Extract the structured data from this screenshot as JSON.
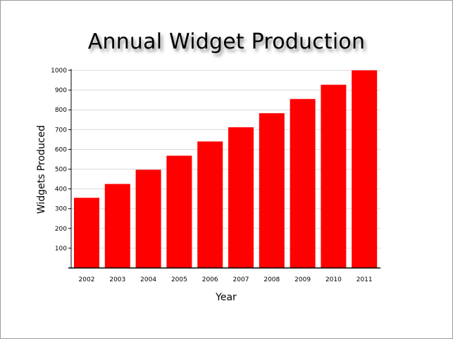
{
  "colors": {
    "bar": "#ff0000",
    "grid": "#d9d9d9",
    "axis": "#000000"
  },
  "chart_data": {
    "type": "bar",
    "title": "Annual Widget Production",
    "xlabel": "Year",
    "ylabel": "Widgets Produced",
    "categories": [
      "2002",
      "2003",
      "2004",
      "2005",
      "2006",
      "2007",
      "2008",
      "2009",
      "2010",
      "2011"
    ],
    "values": [
      355,
      425,
      497,
      568,
      640,
      712,
      783,
      855,
      927,
      1000
    ],
    "ylim": [
      0,
      1000
    ],
    "yticks": [
      100,
      200,
      300,
      400,
      500,
      600,
      700,
      800,
      900,
      1000
    ],
    "grid": true,
    "legend": "none"
  }
}
